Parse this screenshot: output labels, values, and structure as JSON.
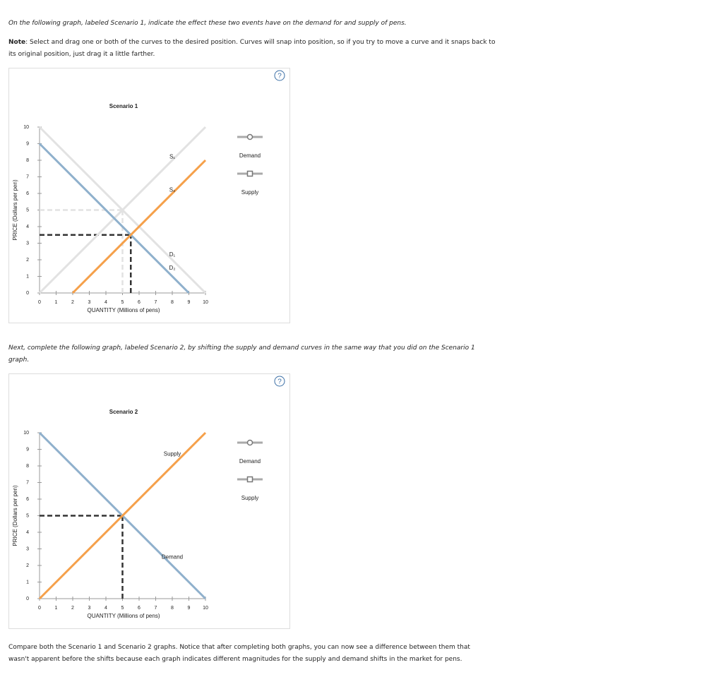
{
  "intro": "On the following graph, labeled Scenario 1, indicate the effect these two events have on the demand for and supply of pens.",
  "note": {
    "label": "Note",
    "text": ": Select and drag one or both of the curves to the desired position. Curves will snap into position, so if you try to move a curve and it snaps back to its original position, just drag it a little farther."
  },
  "next": "Next, complete the following graph, labeled Scenario 2, by shifting the supply and demand curves in the same way that you did on the Scenario 1 graph.",
  "compare": "Compare both the Scenario 1 and Scenario 2 graphs. Notice that after completing both graphs, you can now see a difference between them that wasn't apparent before the shifts because each graph indicates different magnitudes for the supply and demand shifts in the market for pens.",
  "graphs": [
    {
      "title": "Scenario 1",
      "help": "?",
      "xlabel": "QUANTITY (Millions of pens)",
      "ylabel": "PRICE (Dollars per pen)",
      "xlim": [
        0,
        10
      ],
      "ylim": [
        0,
        10
      ],
      "xticks": [
        0,
        1,
        2,
        3,
        4,
        5,
        6,
        7,
        8,
        9,
        10
      ],
      "yticks": [
        0,
        1,
        2,
        3,
        4,
        5,
        6,
        7,
        8,
        9,
        10
      ],
      "legend": [
        "Demand",
        "Supply"
      ],
      "curves": [
        {
          "label": "S₁",
          "color": "#e2e2e2",
          "x": [
            0,
            10
          ],
          "y": [
            0,
            10
          ],
          "label_at": [
            8,
            8.2
          ]
        },
        {
          "label": "D₁",
          "color": "#e2e2e2",
          "x": [
            0,
            10
          ],
          "y": [
            10,
            0
          ],
          "label_at": [
            8,
            2.3
          ]
        },
        {
          "label": "D₂",
          "color": "#8fb0cc",
          "x": [
            0,
            9
          ],
          "y": [
            9,
            0
          ],
          "label_at": [
            8,
            1.5
          ]
        },
        {
          "label": "S₂",
          "color": "#f5a04a",
          "x": [
            2,
            10
          ],
          "y": [
            0,
            8
          ],
          "label_at": [
            8,
            6.2
          ]
        }
      ],
      "guides": [
        {
          "x": 5,
          "y": 5,
          "color": "#e2e2e2"
        },
        {
          "x": 5.5,
          "y": 3.5,
          "color": "#333333"
        }
      ]
    },
    {
      "title": "Scenario 2",
      "help": "?",
      "xlabel": "QUANTITY (Millions of pens)",
      "ylabel": "PRICE (Dollars per pen)",
      "xlim": [
        0,
        10
      ],
      "ylim": [
        0,
        10
      ],
      "xticks": [
        0,
        1,
        2,
        3,
        4,
        5,
        6,
        7,
        8,
        9,
        10
      ],
      "yticks": [
        0,
        1,
        2,
        3,
        4,
        5,
        6,
        7,
        8,
        9,
        10
      ],
      "legend": [
        "Demand",
        "Supply"
      ],
      "curves": [
        {
          "label": "Demand",
          "color": "#8fb0cc",
          "x": [
            0,
            10
          ],
          "y": [
            10,
            0
          ],
          "label_at": [
            8,
            2.5
          ]
        },
        {
          "label": "Supply",
          "color": "#f5a04a",
          "x": [
            0,
            10
          ],
          "y": [
            0,
            10
          ],
          "label_at": [
            8,
            8.7
          ]
        }
      ],
      "guides": [
        {
          "x": 5,
          "y": 5,
          "color": "#333333"
        }
      ]
    }
  ]
}
